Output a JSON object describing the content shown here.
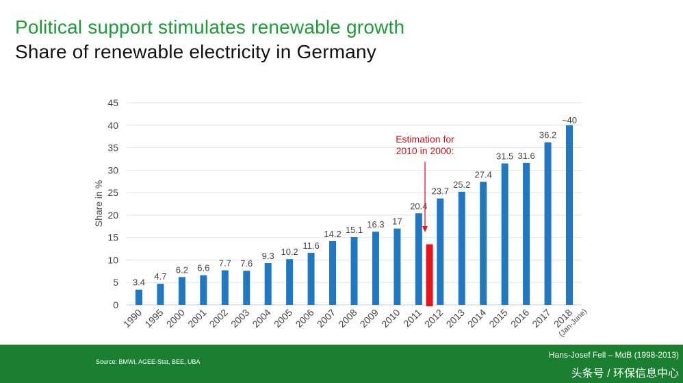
{
  "title": "Political support stimulates renewable growth",
  "subtitle": "Share of renewable electricity in Germany",
  "chart_data": {
    "type": "bar",
    "categories": [
      "1990",
      "1995",
      "2000",
      "2001",
      "2002",
      "2003",
      "2004",
      "2005",
      "2006",
      "2007",
      "2008",
      "2009",
      "2010",
      "2011",
      "2012",
      "2013",
      "2014",
      "2015",
      "2016",
      "2017",
      "2018"
    ],
    "category_sublabels": {
      "2018": "(Jan-June)"
    },
    "values": [
      3.4,
      4.7,
      6.2,
      6.6,
      7.7,
      7.6,
      9.3,
      10.2,
      11.6,
      14.2,
      15.1,
      16.3,
      17,
      20.4,
      23.7,
      25.2,
      27.4,
      31.5,
      31.6,
      36.2,
      40
    ],
    "value_labels": [
      "3.4",
      "4.7",
      "6.2",
      "6.6",
      "7.7",
      "7.6",
      "9.3",
      "10.2",
      "11.6",
      "14.2",
      "15.1",
      "16.3",
      "17",
      "20.4",
      "23.7",
      "25.2",
      "27.4",
      "31.5",
      "31.6",
      "36.2",
      "~40"
    ],
    "ylabel": "Share in %",
    "ylim": [
      0,
      45
    ],
    "yticks": [
      0,
      5,
      10,
      15,
      20,
      25,
      30,
      35,
      40,
      45
    ],
    "grid": true,
    "bar_color": "#1f78c1",
    "estimation": {
      "label_line1": "Estimation for",
      "label_line2": "2010 in 2000:",
      "value": 13.5,
      "between": [
        "2011",
        "2012"
      ],
      "color": "#e8141c"
    }
  },
  "footer": {
    "source": "Source: BMWi, AGEE-Stat, BEE, UBA",
    "credit": "Hans-Josef Fell – MdB (1998-2013)",
    "credit2": "头条号 / 环保信息中心"
  },
  "colors": {
    "title": "#1e9a3a",
    "footer_bg": "#1a7f30",
    "bar": "#1f78c1",
    "estimation": "#e8141c"
  }
}
